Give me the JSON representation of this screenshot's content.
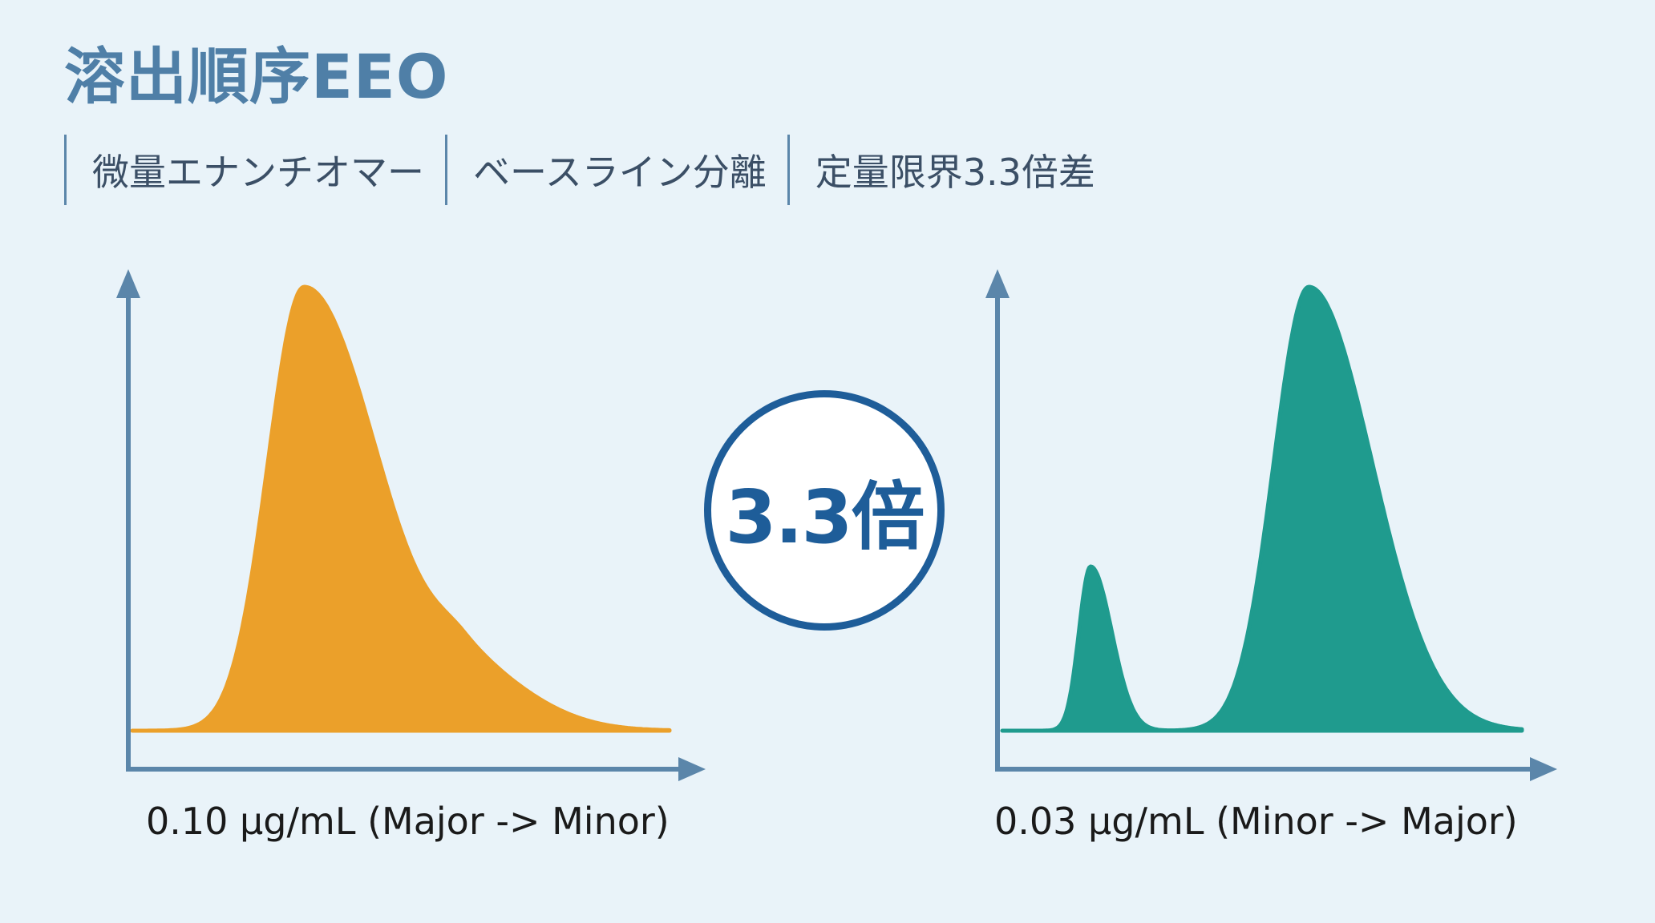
{
  "title": "溶出順序EEO",
  "tags": [
    "微量エナンチオマー",
    "ベースライン分離",
    "定量限界3.3倍差"
  ],
  "ratio": "3.3倍",
  "colors": {
    "left_peak": "#eba02a",
    "right_peak": "#1f9b8e",
    "axis": "#5b86aa",
    "title": "#4f7fa7",
    "circle": "#1e5d99",
    "background": "#e9f3f9"
  },
  "chart_data": [
    {
      "type": "area",
      "xlabel": "0.10 µg/mL (Major -> Minor)",
      "series": [
        {
          "role": "major-peak",
          "position": 0.32,
          "height": 1.0,
          "width": 0.09
        },
        {
          "role": "minor-peak-shoulder",
          "position": 0.62,
          "height": 0.12,
          "width": 0.08
        }
      ],
      "resolution": "co-eluting shoulder"
    },
    {
      "type": "area",
      "xlabel": "0.03 µg/mL (Minor -> Major)",
      "series": [
        {
          "role": "minor-peak",
          "position": 0.17,
          "height": 0.37,
          "width": 0.03
        },
        {
          "role": "major-peak",
          "position": 0.59,
          "height": 1.0,
          "width": 0.09
        }
      ],
      "resolution": "baseline separation"
    }
  ]
}
